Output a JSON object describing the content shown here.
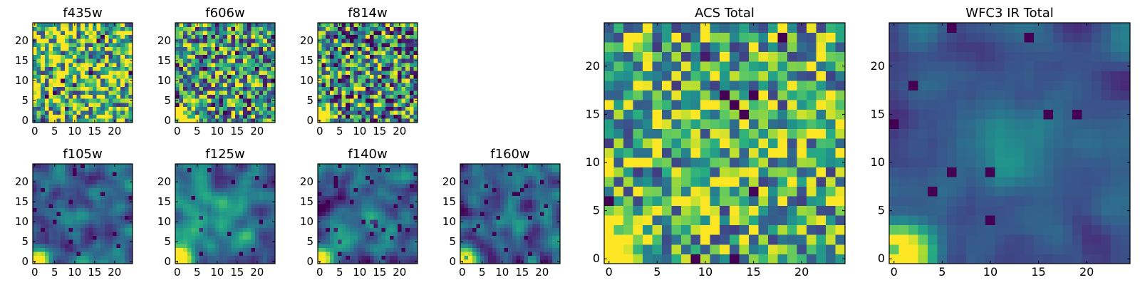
{
  "chart_data": [
    {
      "type": "heatmap",
      "title": "f435w",
      "xlim": [
        0,
        24
      ],
      "ylim": [
        0,
        24
      ],
      "xticks": [
        "0",
        "5",
        "10",
        "15",
        "20"
      ],
      "yticks": [
        "0",
        "5",
        "10",
        "15",
        "20"
      ],
      "pixels": "25x25",
      "colormap": "viridis",
      "pattern": "noise",
      "seed": 11,
      "noise_level": 0.72,
      "noise_amp": 0.55,
      "blob_amp": 0,
      "bright_amp": 0,
      "dark_spots": 0.05
    },
    {
      "type": "heatmap",
      "title": "f606w",
      "xlim": [
        0,
        24
      ],
      "ylim": [
        0,
        24
      ],
      "xticks": [
        "0",
        "5",
        "10",
        "15",
        "20"
      ],
      "yticks": [
        "0",
        "5",
        "10",
        "15",
        "20"
      ],
      "pixels": "25x25",
      "colormap": "viridis",
      "pattern": "noise-corner",
      "seed": 23,
      "noise_level": 0.55,
      "noise_amp": 0.5,
      "blob_amp": 0.1,
      "bright_amp": 1.0,
      "dark_spots": 0.05
    },
    {
      "type": "heatmap",
      "title": "f814w",
      "xlim": [
        0,
        24
      ],
      "ylim": [
        0,
        24
      ],
      "xticks": [
        "0",
        "5",
        "10",
        "15",
        "20"
      ],
      "yticks": [
        "0",
        "5",
        "10",
        "15",
        "20"
      ],
      "pixels": "25x25",
      "colormap": "viridis",
      "pattern": "noise-corner",
      "seed": 37,
      "noise_level": 0.5,
      "noise_amp": 0.55,
      "blob_amp": 0.05,
      "bright_amp": 1.0,
      "dark_spots": 0.07
    },
    {
      "type": "heatmap",
      "title": "f105w",
      "xlim": [
        0,
        24
      ],
      "ylim": [
        0,
        24
      ],
      "xticks": [
        "0",
        "5",
        "10",
        "15",
        "20"
      ],
      "yticks": [
        "0",
        "5",
        "10",
        "15",
        "20"
      ],
      "pixels": "25x25",
      "colormap": "viridis",
      "pattern": "smooth-corner",
      "seed": 41,
      "noise_level": 0.33,
      "noise_amp": 0.3,
      "blob_amp": 0.15,
      "bright_amp": 1.0,
      "dark_spots": 0.03
    },
    {
      "type": "heatmap",
      "title": "f125w",
      "xlim": [
        0,
        24
      ],
      "ylim": [
        0,
        24
      ],
      "xticks": [
        "0",
        "5",
        "10",
        "15",
        "20"
      ],
      "yticks": [
        "0",
        "5",
        "10",
        "15",
        "20"
      ],
      "pixels": "25x25",
      "colormap": "viridis",
      "pattern": "smooth-corner",
      "seed": 53,
      "noise_level": 0.4,
      "noise_amp": 0.3,
      "blob_amp": 0.15,
      "bright_amp": 1.0,
      "dark_spots": 0.03
    },
    {
      "type": "heatmap",
      "title": "f140w",
      "xlim": [
        0,
        24
      ],
      "ylim": [
        0,
        24
      ],
      "xticks": [
        "0",
        "5",
        "10",
        "15",
        "20"
      ],
      "yticks": [
        "0",
        "5",
        "10",
        "15",
        "20"
      ],
      "pixels": "25x25",
      "colormap": "viridis",
      "pattern": "smooth-corner",
      "seed": 67,
      "noise_level": 0.3,
      "noise_amp": 0.32,
      "blob_amp": 0.12,
      "bright_amp": 1.0,
      "dark_spots": 0.04
    },
    {
      "type": "heatmap",
      "title": "f160w",
      "xlim": [
        0,
        24
      ],
      "ylim": [
        0,
        24
      ],
      "xticks": [
        "0",
        "5",
        "10",
        "15",
        "20"
      ],
      "yticks": [
        "0",
        "5",
        "10",
        "15",
        "20"
      ],
      "pixels": "25x25",
      "colormap": "viridis",
      "pattern": "smooth-corner",
      "seed": 79,
      "noise_level": 0.28,
      "noise_amp": 0.3,
      "blob_amp": 0.18,
      "bright_amp": 1.0,
      "dark_spots": 0.05
    },
    {
      "type": "heatmap",
      "title": "ACS Total",
      "xlim": [
        0,
        24
      ],
      "ylim": [
        0,
        24
      ],
      "xticks": [
        "0",
        "5",
        "10",
        "15",
        "20"
      ],
      "yticks": [
        "0",
        "5",
        "10",
        "15",
        "20"
      ],
      "pixels": "25x25",
      "colormap": "viridis",
      "pattern": "noise-corner",
      "seed": 97,
      "noise_level": 0.62,
      "noise_amp": 0.45,
      "blob_amp": 0.05,
      "bright_amp": 1.0,
      "dark_spots": 0.04
    },
    {
      "type": "heatmap",
      "title": "WFC3 IR Total",
      "xlim": [
        0,
        24
      ],
      "ylim": [
        0,
        24
      ],
      "xticks": [
        "0",
        "5",
        "10",
        "15",
        "20"
      ],
      "yticks": [
        "0",
        "5",
        "10",
        "15",
        "20"
      ],
      "pixels": "25x25",
      "colormap": "viridis",
      "pattern": "smooth-corner",
      "seed": 113,
      "noise_level": 0.28,
      "noise_amp": 0.16,
      "blob_amp": 0.2,
      "bright_amp": 1.0,
      "dark_spots": 0.02
    }
  ]
}
